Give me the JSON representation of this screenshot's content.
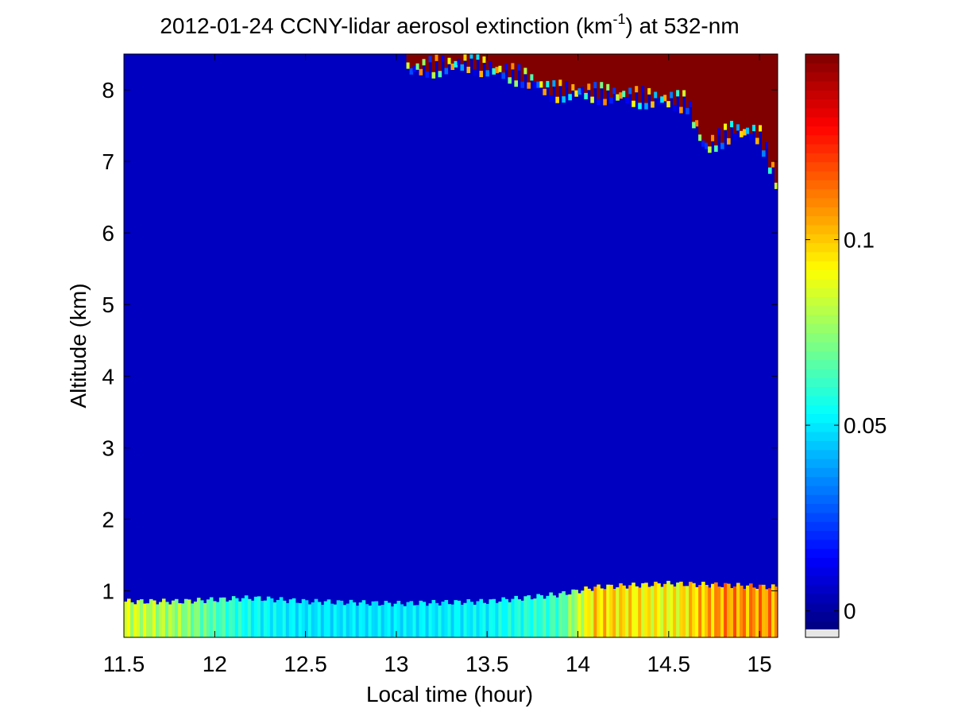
{
  "chart_data": {
    "type": "heatmap",
    "title": {
      "prefix": "2012-01-24 CCNY-lidar aerosol extinction (km",
      "superscript": "-1",
      "suffix": ") at 532-nm"
    },
    "xlabel": "Local time (hour)",
    "ylabel": "Altitude (km)",
    "xlim": [
      11.5,
      15.1
    ],
    "ylim": [
      0.35,
      8.5
    ],
    "x_ticks": [
      11.5,
      12,
      12.5,
      13,
      13.5,
      14,
      14.5,
      15
    ],
    "x_tick_labels": [
      "11.5",
      "12",
      "12.5",
      "13",
      "13.5",
      "14",
      "14.5",
      "15"
    ],
    "y_ticks": [
      1,
      2,
      3,
      4,
      5,
      6,
      7,
      8
    ],
    "y_tick_labels": [
      "1",
      "2",
      "3",
      "4",
      "5",
      "6",
      "7",
      "8"
    ],
    "colorbar": {
      "colormap": "jet",
      "range": [
        -0.005,
        0.15
      ],
      "ticks": [
        0,
        0.05,
        0.1
      ],
      "tick_labels": [
        "0",
        "0.05",
        "0.1"
      ]
    },
    "features": {
      "background_extinction": 0.005,
      "boundary_layer": {
        "time": [
          11.5,
          11.8,
          12.2,
          12.5,
          13.0,
          13.5,
          13.9,
          14.1,
          14.5,
          14.8,
          15.1
        ],
        "top_km": [
          0.85,
          0.85,
          0.9,
          0.85,
          0.82,
          0.85,
          0.95,
          1.05,
          1.1,
          1.08,
          1.05
        ],
        "extinction": [
          0.095,
          0.085,
          0.06,
          0.055,
          0.055,
          0.058,
          0.07,
          0.11,
          0.1,
          0.12,
          0.12
        ]
      },
      "cirrus": {
        "time": [
          13.05,
          13.4,
          13.7,
          13.85,
          14.0,
          14.2,
          14.4,
          14.6,
          14.7,
          14.85,
          15.0,
          15.1
        ],
        "base_km": [
          8.3,
          8.4,
          8.2,
          8.0,
          8.0,
          7.95,
          7.9,
          7.85,
          7.2,
          7.45,
          7.4,
          6.7
        ],
        "extinction": 0.16
      }
    }
  }
}
